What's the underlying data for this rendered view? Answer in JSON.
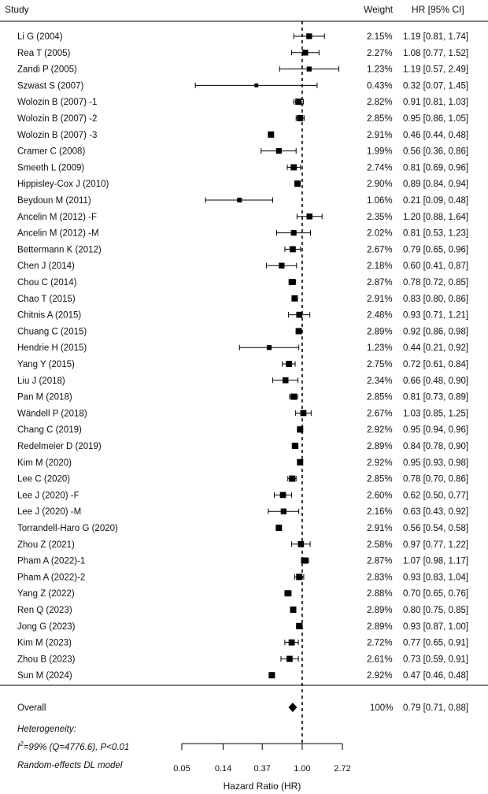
{
  "chart_data": {
    "type": "forest",
    "headers": {
      "study": "Study",
      "weight": "Weight",
      "hr": "HR [95% CI]"
    },
    "studies": [
      {
        "label": "Li G (2004)",
        "weight": "2.15%",
        "ci_text": "1.19 [0.81, 1.74]",
        "hr": 1.19,
        "lo": 0.81,
        "hi": 1.74
      },
      {
        "label": "Rea T (2005)",
        "weight": "2.27%",
        "ci_text": "1.08 [0.77, 1.52]",
        "hr": 1.08,
        "lo": 0.77,
        "hi": 1.52
      },
      {
        "label": "Zandi P (2005)",
        "weight": "1.23%",
        "ci_text": "1.19 [0.57, 2.49]",
        "hr": 1.19,
        "lo": 0.57,
        "hi": 2.49
      },
      {
        "label": "Szwast S (2007)",
        "weight": "0.43%",
        "ci_text": "0.32 [0.07, 1.45]",
        "hr": 0.32,
        "lo": 0.07,
        "hi": 1.45
      },
      {
        "label": "Wolozin B (2007) -1",
        "weight": "2.82%",
        "ci_text": "0.91 [0.81, 1.03]",
        "hr": 0.91,
        "lo": 0.81,
        "hi": 1.03
      },
      {
        "label": "Wolozin B (2007) -2",
        "weight": "2.85%",
        "ci_text": "0.95 [0.86, 1.05]",
        "hr": 0.95,
        "lo": 0.86,
        "hi": 1.05
      },
      {
        "label": "Wolozin B (2007) -3",
        "weight": "2.91%",
        "ci_text": "0.46 [0.44, 0.48]",
        "hr": 0.46,
        "lo": 0.44,
        "hi": 0.48
      },
      {
        "label": "Cramer C (2008)",
        "weight": "1.99%",
        "ci_text": "0.56 [0.36, 0.86]",
        "hr": 0.56,
        "lo": 0.36,
        "hi": 0.86
      },
      {
        "label": "Smeeth L (2009)",
        "weight": "2.74%",
        "ci_text": "0.81 [0.69, 0.96]",
        "hr": 0.81,
        "lo": 0.69,
        "hi": 0.96
      },
      {
        "label": "Hippisley-Cox J (2010)",
        "weight": "2.90%",
        "ci_text": "0.89 [0.84, 0.94]",
        "hr": 0.89,
        "lo": 0.84,
        "hi": 0.94
      },
      {
        "label": "Beydoun M (2011)",
        "weight": "1.06%",
        "ci_text": "0.21 [0.09, 0.48]",
        "hr": 0.21,
        "lo": 0.09,
        "hi": 0.48
      },
      {
        "label": "Ancelin M (2012) -F",
        "weight": "2.35%",
        "ci_text": "1.20 [0.88, 1.64]",
        "hr": 1.2,
        "lo": 0.88,
        "hi": 1.64
      },
      {
        "label": "Ancelin M (2012) -M",
        "weight": "2.02%",
        "ci_text": "0.81 [0.53, 1.23]",
        "hr": 0.81,
        "lo": 0.53,
        "hi": 1.23
      },
      {
        "label": "Bettermann K (2012)",
        "weight": "2.67%",
        "ci_text": "0.79 [0.65, 0.96]",
        "hr": 0.79,
        "lo": 0.65,
        "hi": 0.96
      },
      {
        "label": "Chen J (2014)",
        "weight": "2.18%",
        "ci_text": "0.60 [0.41, 0.87]",
        "hr": 0.6,
        "lo": 0.41,
        "hi": 0.87
      },
      {
        "label": "Chou C (2014)",
        "weight": "2.87%",
        "ci_text": "0.78 [0.72, 0.85]",
        "hr": 0.78,
        "lo": 0.72,
        "hi": 0.85
      },
      {
        "label": "Chao T (2015)",
        "weight": "2.91%",
        "ci_text": "0.83 [0.80, 0.86]",
        "hr": 0.83,
        "lo": 0.8,
        "hi": 0.86
      },
      {
        "label": "Chitnis A (2015)",
        "weight": "2.48%",
        "ci_text": "0.93 [0.71, 1.21]",
        "hr": 0.93,
        "lo": 0.71,
        "hi": 1.21
      },
      {
        "label": "Chuang C (2015)",
        "weight": "2.89%",
        "ci_text": "0.92 [0.86, 0.98]",
        "hr": 0.92,
        "lo": 0.86,
        "hi": 0.98
      },
      {
        "label": "Hendrie H (2015)",
        "weight": "1.23%",
        "ci_text": "0.44 [0.21, 0.92]",
        "hr": 0.44,
        "lo": 0.21,
        "hi": 0.92
      },
      {
        "label": "Yang Y (2015)",
        "weight": "2.75%",
        "ci_text": "0.72 [0.61, 0.84]",
        "hr": 0.72,
        "lo": 0.61,
        "hi": 0.84
      },
      {
        "label": "Liu J (2018)",
        "weight": "2.34%",
        "ci_text": "0.66 [0.48, 0.90]",
        "hr": 0.66,
        "lo": 0.48,
        "hi": 0.9
      },
      {
        "label": "Pan M (2018)",
        "weight": "2.85%",
        "ci_text": "0.81 [0.73, 0.89]",
        "hr": 0.81,
        "lo": 0.73,
        "hi": 0.89
      },
      {
        "label": "Wändell P (2018)",
        "weight": "2.67%",
        "ci_text": "1.03 [0.85, 1.25]",
        "hr": 1.03,
        "lo": 0.85,
        "hi": 1.25
      },
      {
        "label": "Chang C (2019)",
        "weight": "2.92%",
        "ci_text": "0.95 [0.94, 0.96]",
        "hr": 0.95,
        "lo": 0.94,
        "hi": 0.96
      },
      {
        "label": "Redelmeier D (2019)",
        "weight": "2.89%",
        "ci_text": "0.84 [0.78, 0.90]",
        "hr": 0.84,
        "lo": 0.78,
        "hi": 0.9
      },
      {
        "label": "Kim M (2020)",
        "weight": "2.92%",
        "ci_text": "0.95 [0.93, 0.98]",
        "hr": 0.95,
        "lo": 0.93,
        "hi": 0.98
      },
      {
        "label": "Lee C (2020)",
        "weight": "2.85%",
        "ci_text": "0.78 [0.70, 0.86]",
        "hr": 0.78,
        "lo": 0.7,
        "hi": 0.86
      },
      {
        "label": "Lee J (2020) -F",
        "weight": "2.60%",
        "ci_text": "0.62 [0.50, 0.77]",
        "hr": 0.62,
        "lo": 0.5,
        "hi": 0.77
      },
      {
        "label": "Lee J (2020) -M",
        "weight": "2.16%",
        "ci_text": "0.63 [0.43, 0.92]",
        "hr": 0.63,
        "lo": 0.43,
        "hi": 0.92
      },
      {
        "label": "Torrandell-Haro G (2020)",
        "weight": "2.91%",
        "ci_text": "0.56 [0.54, 0.58]",
        "hr": 0.56,
        "lo": 0.54,
        "hi": 0.58
      },
      {
        "label": "Zhou Z (2021)",
        "weight": "2.58%",
        "ci_text": "0.97 [0.77, 1.22]",
        "hr": 0.97,
        "lo": 0.77,
        "hi": 1.22
      },
      {
        "label": "Pham A (2022)-1",
        "weight": "2.87%",
        "ci_text": "1.07 [0.98, 1.17]",
        "hr": 1.07,
        "lo": 0.98,
        "hi": 1.17
      },
      {
        "label": "Pham A (2022)-2",
        "weight": "2.83%",
        "ci_text": "0.93 [0.83, 1.04]",
        "hr": 0.93,
        "lo": 0.83,
        "hi": 1.04
      },
      {
        "label": "Yang Z (2022)",
        "weight": "2.88%",
        "ci_text": "0.70 [0.65, 0.76]",
        "hr": 0.7,
        "lo": 0.65,
        "hi": 0.76
      },
      {
        "label": "Ren Q (2023)",
        "weight": "2.89%",
        "ci_text": "0.80 [0.75, 0.85]",
        "hr": 0.8,
        "lo": 0.75,
        "hi": 0.85
      },
      {
        "label": "Jong G (2023)",
        "weight": "2.89%",
        "ci_text": "0.93 [0.87, 1.00]",
        "hr": 0.93,
        "lo": 0.87,
        "hi": 1.0
      },
      {
        "label": "Kim M (2023)",
        "weight": "2.72%",
        "ci_text": "0.77 [0.65, 0.91]",
        "hr": 0.77,
        "lo": 0.65,
        "hi": 0.91
      },
      {
        "label": "Zhou B (2023)",
        "weight": "2.61%",
        "ci_text": "0.73 [0.59, 0.91]",
        "hr": 0.73,
        "lo": 0.59,
        "hi": 0.91
      },
      {
        "label": "Sun M (2024)",
        "weight": "2.92%",
        "ci_text": "0.47 [0.46, 0.48]",
        "hr": 0.47,
        "lo": 0.46,
        "hi": 0.48
      }
    ],
    "overall": {
      "label": "Overall",
      "weight": "100%",
      "ci_text": "0.79 [0.71, 0.88]",
      "hr": 0.79,
      "lo": 0.71,
      "hi": 0.88
    },
    "notes": {
      "heterogeneity_title": "Heterogeneity:",
      "i2_prefix": "I",
      "i2_sup": "2",
      "i2_rest": "=99% (Q=4776.6), P<0.01",
      "model": "Random-effects DL model"
    },
    "x_axis": {
      "label": "Hazard Ratio (HR)",
      "scale": "log",
      "range": [
        0.05,
        2.72
      ],
      "ticks": [
        0.05,
        0.14,
        0.37,
        1.0,
        2.72
      ],
      "tick_labels": [
        "0.05",
        "0.14",
        "0.37",
        "1.00",
        "2.72"
      ],
      "reference_line": 1.0
    }
  }
}
